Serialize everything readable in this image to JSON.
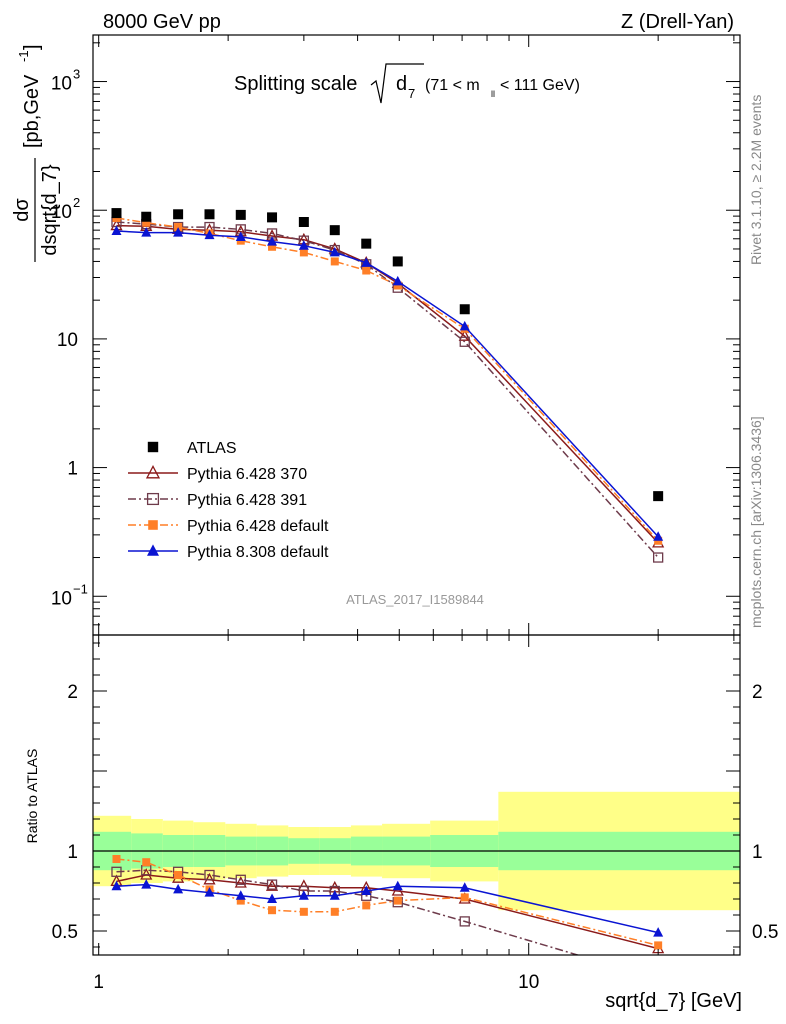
{
  "header": {
    "left": "8000 GeV pp",
    "right": "Z (Drell-Yan)"
  },
  "main": {
    "title_prefix": "Splitting scale",
    "title_var": "d",
    "title_sub": "7",
    "title_cut_open": "(71 < m",
    "title_cut_sub": "ll",
    "title_cut_close": " < 111 GeV)",
    "ylabel_num": "dσ",
    "ylabel_den": "dsqrt{d_7}",
    "ylabel_units": "[pb,GeV",
    "ylabel_units_sup": "-1",
    "ylabel_units_close": "]",
    "watermark": "ATLAS_2017_I1589844"
  },
  "side": {
    "rivet": "Rivet 3.1.10, ≥ 2.2M events",
    "mcplots": "mcplots.cern.ch [arXiv:1306.3436]"
  },
  "ratio": {
    "ylabel": "Ratio to ATLAS"
  },
  "xaxis": {
    "label": "sqrt{d_7} [GeV]"
  },
  "ticks": {
    "x": [
      {
        "v": 1,
        "label": "1"
      },
      {
        "v": 10,
        "label": "10"
      }
    ],
    "y_main": [
      {
        "v": 0.1,
        "base": "10",
        "exp": "−1"
      },
      {
        "v": 1,
        "base": "1",
        "exp": ""
      },
      {
        "v": 10,
        "base": "10",
        "exp": ""
      },
      {
        "v": 100,
        "base": "10",
        "exp": "2"
      },
      {
        "v": 1000,
        "base": "10",
        "exp": "3"
      }
    ],
    "y_ratio": [
      {
        "v": 0.5,
        "label": "0.5"
      },
      {
        "v": 1,
        "label": "1"
      },
      {
        "v": 1.5,
        "label": ""
      },
      {
        "v": 2,
        "label": "2"
      }
    ]
  },
  "chart_data": {
    "type": "line",
    "xscale": "log",
    "yscale_main": "log",
    "xlim": [
      0.97,
      31
    ],
    "ylim_main": [
      0.05,
      2300
    ],
    "ylim_ratio": [
      0.35,
      2.35
    ],
    "x": [
      1.1,
      1.29,
      1.53,
      1.81,
      2.14,
      2.53,
      3.0,
      3.54,
      4.19,
      4.96,
      7.1,
      20.0
    ],
    "reference": {
      "name": "ATLAS",
      "values": [
        95,
        89,
        93,
        93,
        92,
        88,
        81,
        70,
        55,
        40,
        17,
        0.6
      ],
      "band_edges": [
        0.97,
        1.19,
        1.41,
        1.66,
        1.97,
        2.33,
        2.76,
        3.26,
        3.86,
        4.56,
        5.9,
        8.5,
        31
      ],
      "stat_band": [
        0.12,
        0.11,
        0.1,
        0.1,
        0.09,
        0.09,
        0.08,
        0.08,
        0.09,
        0.09,
        0.1,
        0.12
      ],
      "total_band": [
        0.22,
        0.2,
        0.19,
        0.18,
        0.17,
        0.16,
        0.15,
        0.15,
        0.16,
        0.17,
        0.19,
        0.37
      ]
    },
    "series": [
      {
        "name": "Pythia 6.428 370",
        "color": "#8b1a1a",
        "dash": "",
        "marker": "open-triangle",
        "values": [
          76,
          75,
          71,
          70,
          68,
          63,
          59,
          50,
          39,
          27,
          10.5,
          0.26
        ],
        "ratio": [
          0.81,
          0.85,
          0.83,
          0.82,
          0.8,
          0.78,
          0.78,
          0.77,
          0.77,
          0.75,
          0.7,
          0.39
        ]
      },
      {
        "name": "Pythia 6.428 391",
        "color": "#6e3b4b",
        "dash": "8,3,2,3",
        "marker": "open-square",
        "values": [
          81,
          78,
          74,
          74,
          71,
          66,
          58,
          49,
          38,
          25,
          9.5,
          0.2
        ],
        "ratio": [
          0.87,
          0.88,
          0.87,
          0.85,
          0.82,
          0.79,
          0.75,
          0.75,
          0.72,
          0.68,
          0.56,
          0.2
        ]
      },
      {
        "name": "Pythia 6.428 default",
        "color": "#ff7f27",
        "dash": "8,3,2,3",
        "marker": "filled-square",
        "values": [
          87,
          80,
          74,
          66,
          58,
          52,
          47,
          40,
          34,
          26,
          12,
          0.27
        ],
        "ratio": [
          0.95,
          0.93,
          0.85,
          0.76,
          0.69,
          0.63,
          0.62,
          0.62,
          0.66,
          0.69,
          0.71,
          0.41
        ]
      },
      {
        "name": "Pythia 8.308 default",
        "color": "#0a14d2",
        "dash": "",
        "marker": "filled-triangle",
        "values": [
          69,
          67,
          67,
          64,
          62,
          57,
          53,
          47,
          39,
          28,
          12.5,
          0.29
        ],
        "ratio": [
          0.78,
          0.79,
          0.76,
          0.74,
          0.72,
          0.7,
          0.72,
          0.72,
          0.75,
          0.78,
          0.77,
          0.49
        ]
      }
    ]
  }
}
